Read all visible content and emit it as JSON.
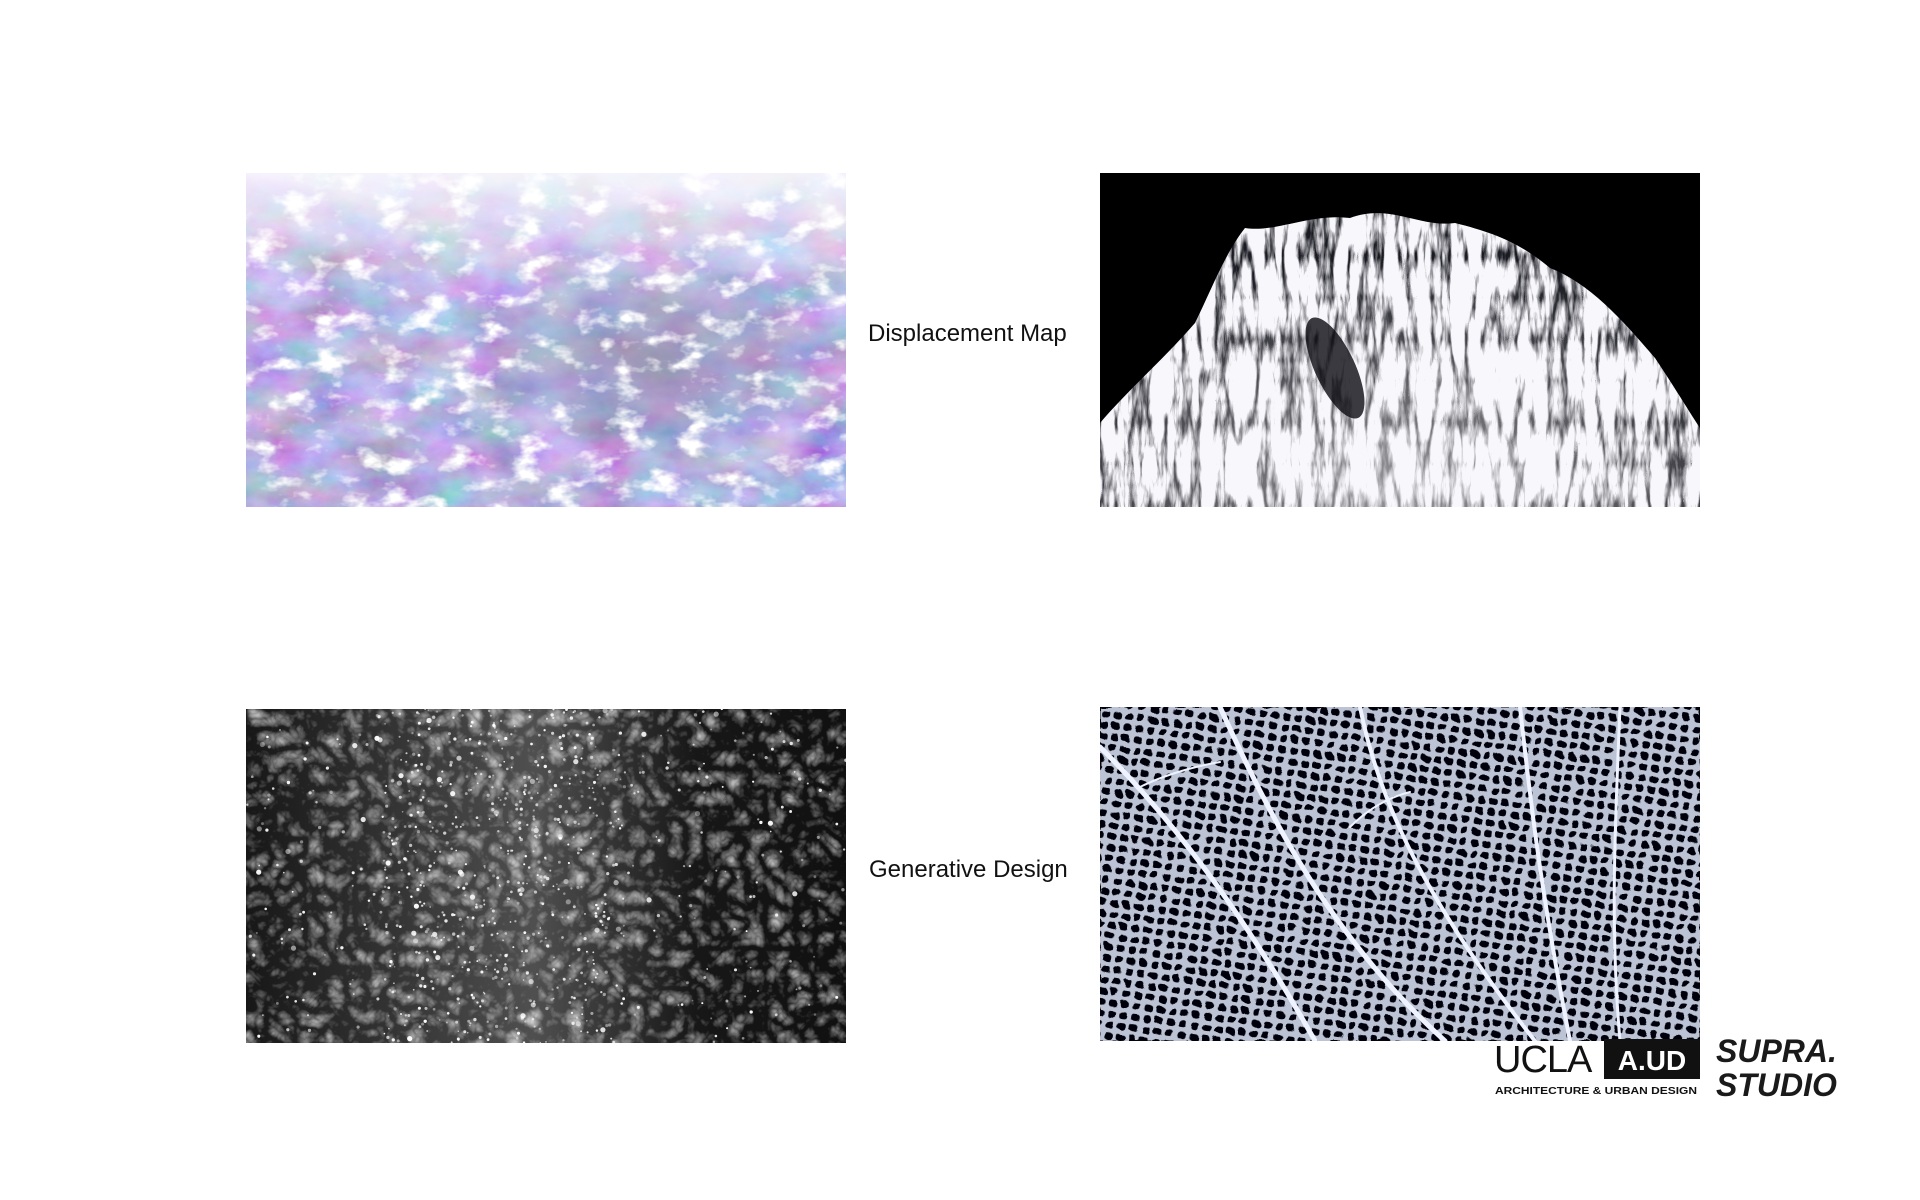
{
  "captions": {
    "first": "Displacement Map",
    "second": "Generative Design"
  },
  "images": [
    {
      "name": "marble-texture-image",
      "description_icon": "textured-rock-image",
      "dominant_colors": [
        "#6a5e94",
        "#ffffff",
        "#8ea3b8"
      ]
    },
    {
      "name": "xray-fibers-image",
      "description_icon": "wispy-fibers-image",
      "dominant_colors": [
        "#000000",
        "#e8e8f0"
      ]
    },
    {
      "name": "particle-field-image",
      "description_icon": "particle-stars-image",
      "dominant_colors": [
        "#0a0a0a",
        "#ffffff"
      ]
    },
    {
      "name": "leaf-vein-image",
      "description_icon": "leaf-venation-image",
      "dominant_colors": [
        "#05060c",
        "#d8e0f0"
      ]
    }
  ],
  "logos": {
    "ucla": {
      "word": "UCLA",
      "badge": "A.UD",
      "subtitle": "ARCHITECTURE & URBAN DESIGN"
    },
    "supra": {
      "line1": "SUPRA.",
      "line2": "STUDIO"
    }
  }
}
